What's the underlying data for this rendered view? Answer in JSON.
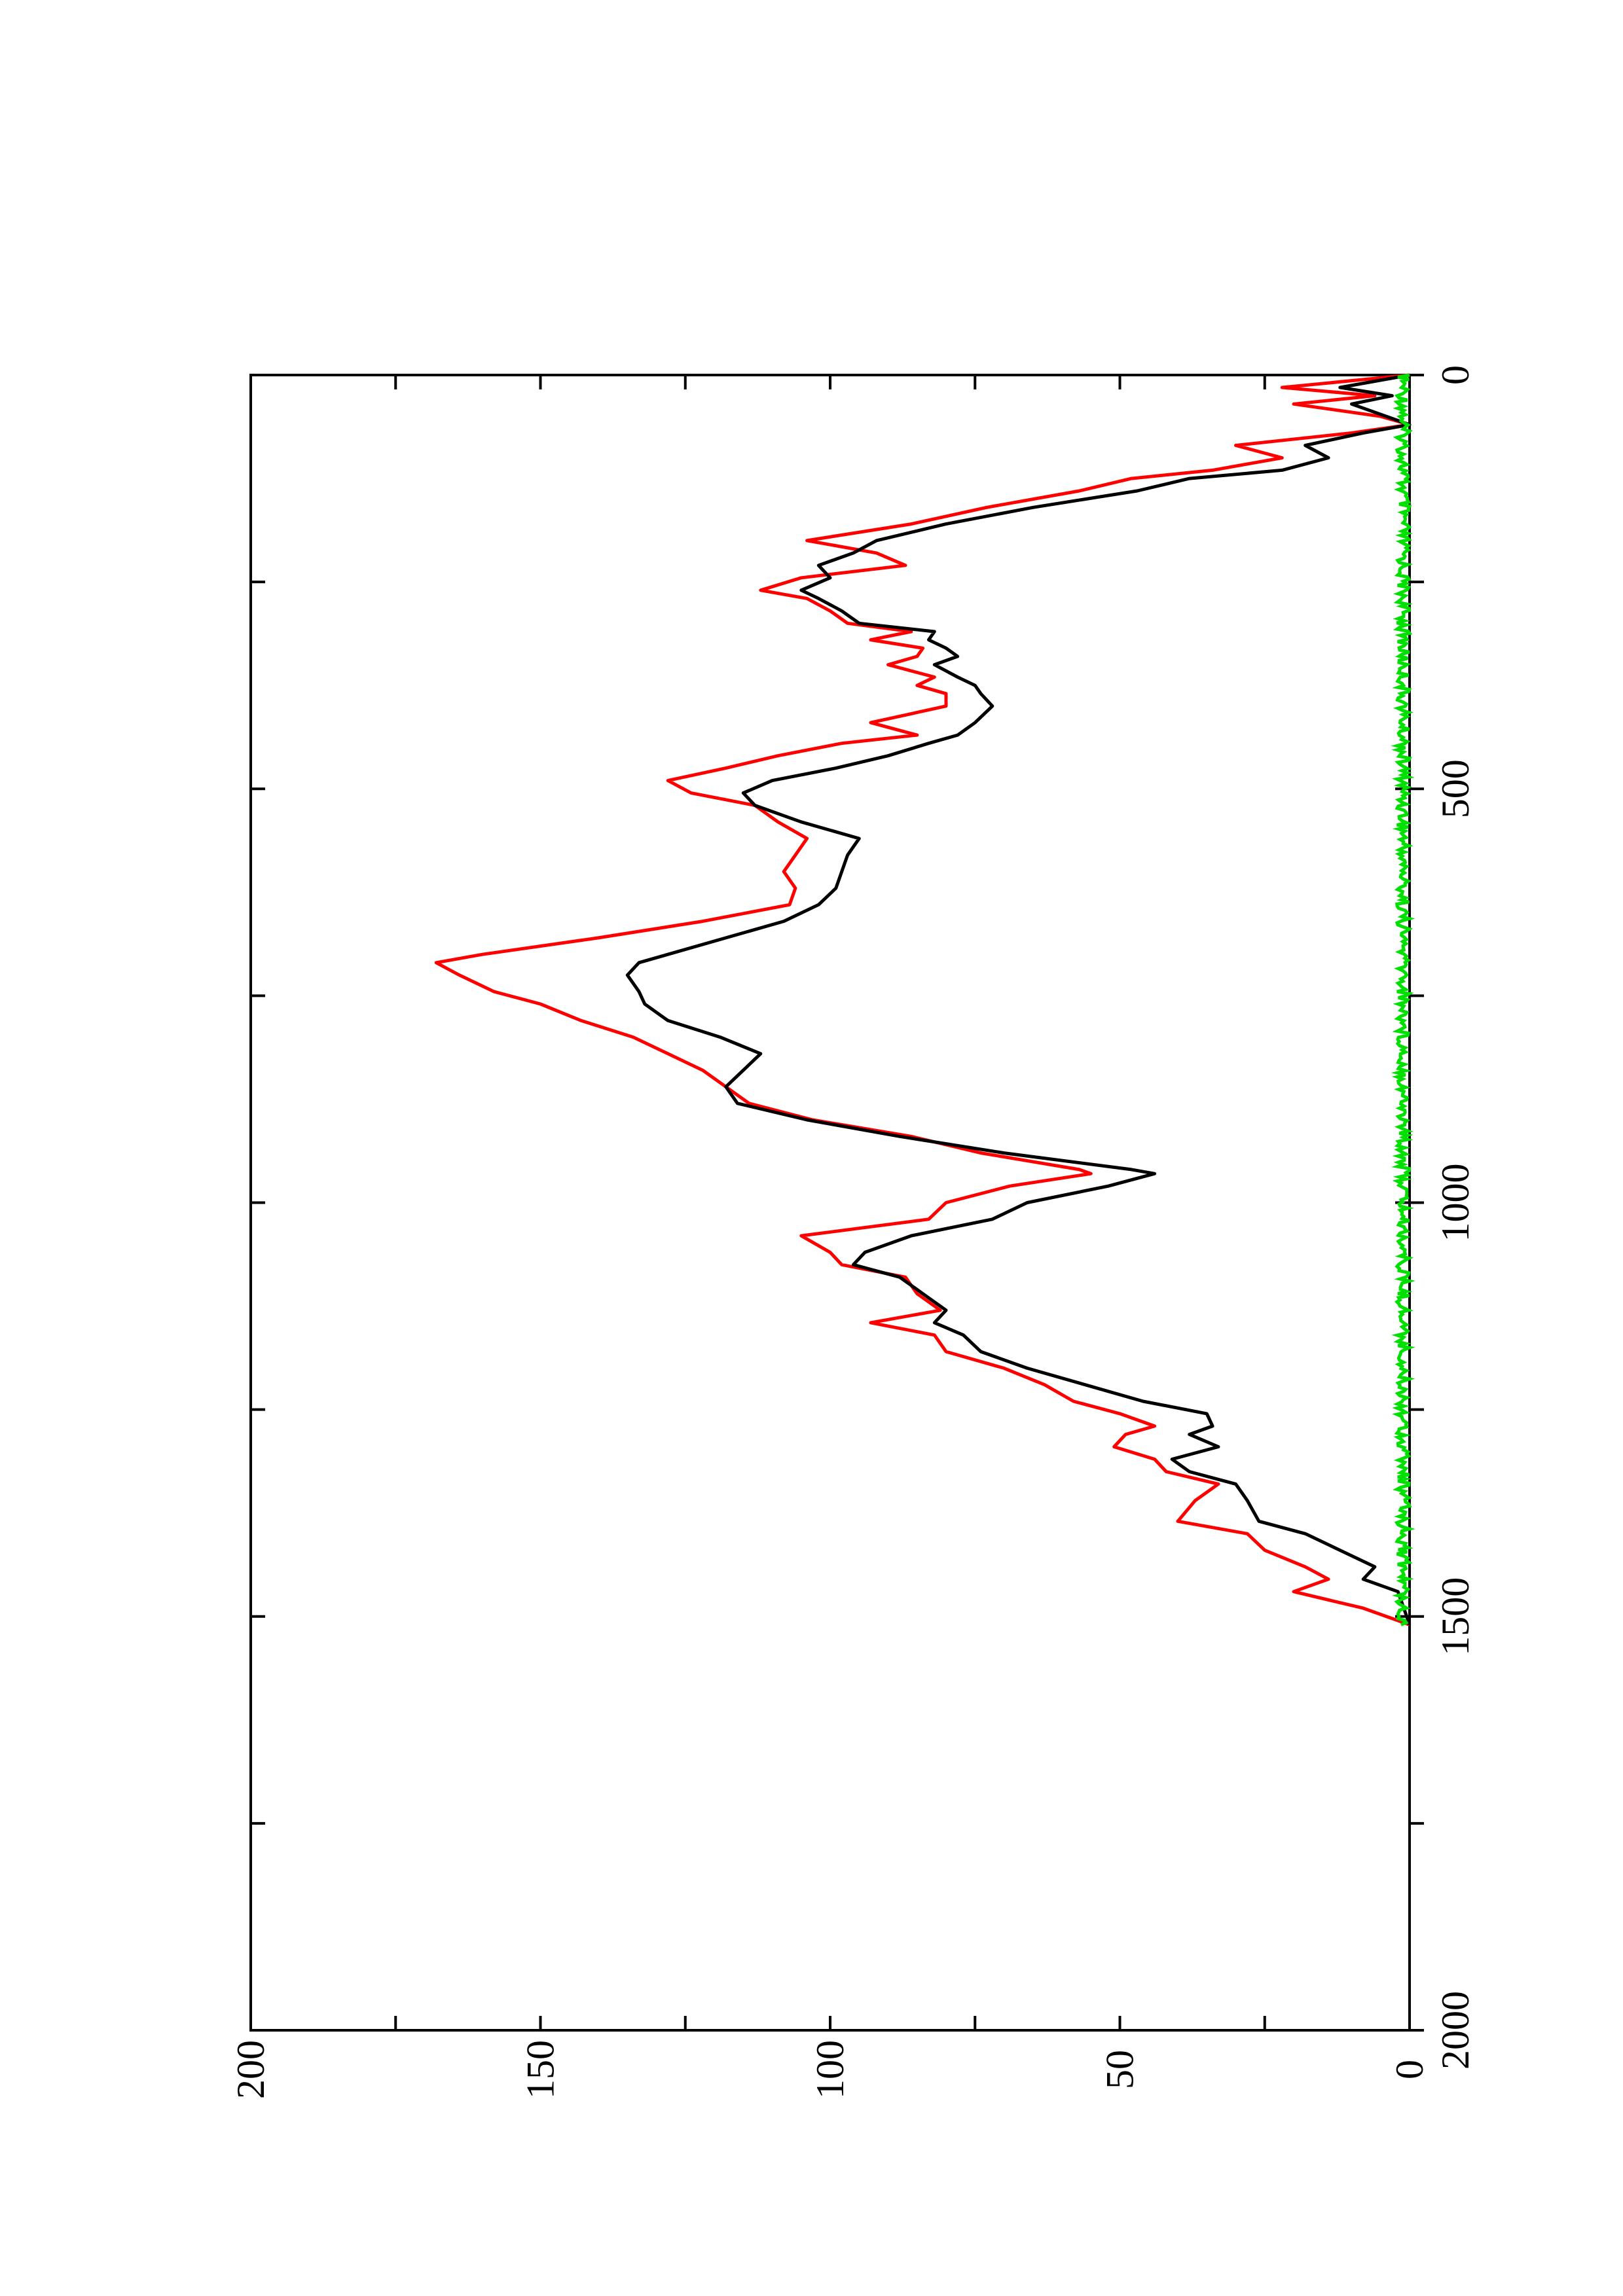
{
  "chart_data": {
    "type": "line",
    "orientation": "rotated-90-clockwise",
    "title": "",
    "xlabel": "",
    "ylabel": "",
    "xlim": [
      0,
      2000
    ],
    "ylim": [
      0,
      200
    ],
    "x_ticks": [
      0,
      500,
      1000,
      1500,
      2000
    ],
    "x_tick_labels": [
      "0",
      "500",
      "1000",
      "1500",
      "2000"
    ],
    "x_minor_ticks": [
      250,
      750,
      1250,
      1750
    ],
    "y_ticks": [
      0,
      50,
      100,
      150,
      200
    ],
    "y_tick_labels": [
      "0",
      "50",
      "100",
      "150",
      "200"
    ],
    "y_minor_ticks": [
      25,
      75,
      125,
      175
    ],
    "grid": false,
    "legend": "none",
    "series": [
      {
        "color": "#ff0000",
        "x": [
          0,
          15,
          25,
          35,
          50,
          60,
          70,
          85,
          100,
          115,
          125,
          140,
          160,
          180,
          200,
          215,
          230,
          245,
          260,
          270,
          285,
          300,
          310,
          320,
          330,
          340,
          350,
          365,
          375,
          385,
          400,
          420,
          435,
          445,
          460,
          475,
          490,
          505,
          520,
          540,
          560,
          580,
          600,
          620,
          640,
          660,
          680,
          700,
          710,
          725,
          745,
          760,
          780,
          800,
          820,
          840,
          860,
          880,
          900,
          920,
          940,
          960,
          965,
          980,
          1000,
          1020,
          1040,
          1060,
          1075,
          1090,
          1110,
          1130,
          1145,
          1160,
          1180,
          1200,
          1220,
          1240,
          1255,
          1270,
          1280,
          1295,
          1310,
          1325,
          1340,
          1360,
          1385,
          1400,
          1420,
          1440,
          1455,
          1470,
          1490,
          1510
        ],
        "y": [
          0,
          22,
          6,
          20,
          5,
          0,
          10,
          30,
          22,
          34,
          48,
          57,
          73,
          86,
          104,
          92,
          87,
          105,
          112,
          104,
          100,
          97,
          86,
          93,
          84,
          85,
          90,
          82,
          85,
          80,
          80,
          93,
          85,
          98,
          109,
          118,
          128,
          124,
          113,
          109,
          104,
          106,
          108,
          106,
          107,
          122,
          140,
          160,
          168,
          164,
          158,
          150,
          143,
          134,
          128,
          122,
          118,
          114,
          103,
          86,
          74,
          57,
          55,
          69,
          80,
          83,
          105,
          100,
          98,
          87,
          85,
          81,
          93,
          82,
          80,
          70,
          63,
          58,
          50,
          44,
          49,
          51,
          44,
          42,
          33,
          37,
          40,
          28,
          25,
          18,
          14,
          20,
          8,
          0
        ]
      },
      {
        "color": "#000000",
        "x": [
          0,
          15,
          25,
          35,
          50,
          60,
          70,
          85,
          100,
          115,
          125,
          140,
          160,
          180,
          200,
          215,
          230,
          245,
          260,
          270,
          285,
          300,
          310,
          320,
          330,
          340,
          350,
          365,
          375,
          385,
          400,
          420,
          435,
          445,
          460,
          475,
          490,
          505,
          520,
          540,
          560,
          580,
          600,
          620,
          640,
          660,
          680,
          700,
          710,
          725,
          745,
          760,
          780,
          800,
          820,
          840,
          860,
          880,
          900,
          920,
          940,
          960,
          965,
          980,
          1000,
          1020,
          1040,
          1060,
          1075,
          1090,
          1110,
          1130,
          1145,
          1160,
          1180,
          1200,
          1220,
          1240,
          1255,
          1270,
          1280,
          1295,
          1310,
          1325,
          1340,
          1360,
          1385,
          1400,
          1420,
          1440,
          1455,
          1470,
          1490,
          1510
        ],
        "y": [
          0,
          12,
          3,
          10,
          4,
          0,
          8,
          18,
          14,
          22,
          38,
          47,
          65,
          80,
          92,
          96,
          102,
          100,
          105,
          102,
          98,
          95,
          82,
          83,
          80,
          78,
          82,
          78,
          75,
          74,
          72,
          75,
          78,
          83,
          90,
          99,
          110,
          115,
          113,
          105,
          95,
          97,
          98,
          99,
          102,
          108,
          118,
          128,
          133,
          135,
          133,
          132,
          128,
          119,
          112,
          115,
          118,
          116,
          104,
          88,
          70,
          48,
          44,
          52,
          66,
          72,
          86,
          94,
          96,
          88,
          84,
          80,
          82,
          77,
          74,
          66,
          56,
          46,
          35,
          34,
          38,
          33,
          41,
          38,
          30,
          28,
          26,
          18,
          12,
          6,
          8,
          2,
          1,
          0
        ]
      },
      {
        "color": "#00e000",
        "x": [
          0,
          1510
        ],
        "y": [
          1,
          1
        ],
        "note_visible": false
      }
    ]
  }
}
